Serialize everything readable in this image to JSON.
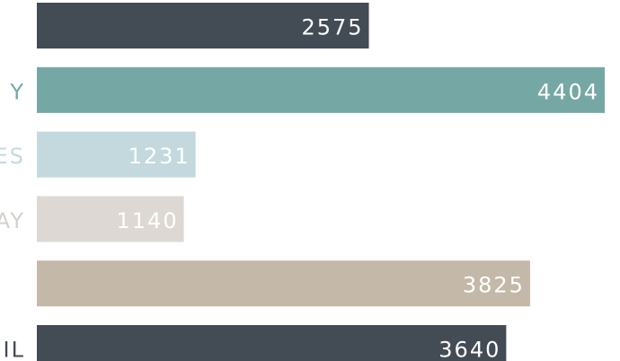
{
  "chart_data": {
    "type": "bar",
    "orientation": "horizontal",
    "categories": [
      null,
      "Y",
      "ES",
      "AY",
      null,
      "IL"
    ],
    "values": [
      2575,
      4404,
      1231,
      1140,
      3825,
      3640
    ],
    "colors": [
      "#434b54",
      "#75a8a4",
      "#c3d9de",
      "#ddd8d3",
      "#c4b8a8",
      "#434b54"
    ],
    "label_colors": [
      "#434b54",
      "#75a8a4",
      "#c3d9de",
      "#d5d0cb",
      "#c4b8a8",
      "#434b54"
    ]
  }
}
